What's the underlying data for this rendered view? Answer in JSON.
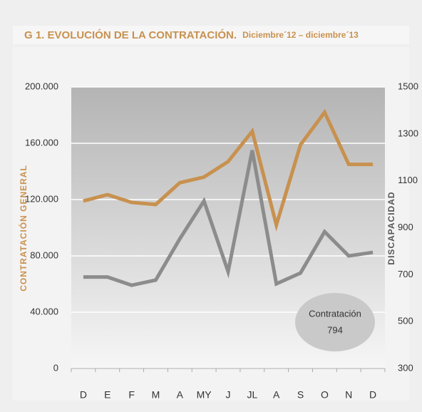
{
  "chart_data": {
    "type": "line",
    "title": "G 1. EVOLUCIÓN DE LA CONTRATACIÓN.",
    "subtitle": "Diciembre´12 – diciembre´13",
    "y_label": "CONTRATACIÓN GENERAL",
    "y2_label": "DISCAPACIDAD",
    "categories": [
      "D",
      "E",
      "F",
      "M",
      "A",
      "MY",
      "J",
      "JL",
      "A",
      "S",
      "O",
      "N",
      "D"
    ],
    "series": [
      {
        "name": "Contratación general",
        "color": "#c8914f",
        "values": [
          119000,
          123500,
          118000,
          116500,
          132000,
          136000,
          147000,
          168500,
          102000,
          159000,
          182000,
          145000,
          145000
        ]
      },
      {
        "name": "Discapacidad",
        "color": "#8c8c8c",
        "axis": "y2",
        "values": [
          690,
          690,
          655,
          677,
          853,
          1014,
          713,
          1230,
          661,
          707,
          883,
          780,
          795
        ]
      }
    ],
    "ylim": [
      0,
      200000
    ],
    "yticks": [
      {
        "value": 0,
        "label": "0"
      },
      {
        "value": 40000,
        "label": "40.000"
      },
      {
        "value": 80000,
        "label": "80.000"
      },
      {
        "value": 120000,
        "label": "120.000"
      },
      {
        "value": 160000,
        "label": "160.000"
      },
      {
        "value": 200000,
        "label": "200.000"
      }
    ],
    "y2lim": [
      300,
      1500
    ],
    "y2ticks": [
      300,
      500,
      700,
      900,
      1100,
      1300,
      1500
    ],
    "annotation": {
      "label": "Contratación",
      "value": 794
    },
    "grid": true
  }
}
